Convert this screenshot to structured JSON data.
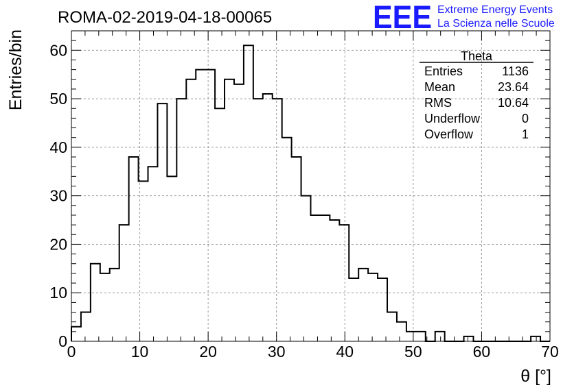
{
  "title": "ROMA-02-2019-04-18-00065",
  "logo": {
    "mark": "EEE",
    "line1": "Extreme Energy Events",
    "line2": "La Scienza nelle Scuole",
    "color": "#1a1aff"
  },
  "stats": {
    "name": "Theta",
    "rows": [
      {
        "label": "Entries",
        "value": "1136"
      },
      {
        "label": "Mean",
        "value": "23.64"
      },
      {
        "label": "RMS",
        "value": "10.64"
      },
      {
        "label": "Underflow",
        "value": "0"
      },
      {
        "label": "Overflow",
        "value": "1"
      }
    ]
  },
  "chart_data": {
    "type": "bar",
    "title": "ROMA-02-2019-04-18-00065",
    "xlabel": "θ [°]",
    "ylabel": "Entries/bin",
    "xlim": [
      0,
      70
    ],
    "ylim": [
      0,
      64
    ],
    "grid": true,
    "bin_width": 1.4,
    "xticks": [
      0,
      10,
      20,
      30,
      40,
      50,
      60,
      70
    ],
    "yticks": [
      0,
      10,
      20,
      30,
      40,
      50,
      60
    ],
    "values": [
      3,
      6,
      16,
      14,
      15,
      24,
      38,
      33,
      36,
      49,
      34,
      50,
      54,
      56,
      56,
      48,
      54,
      53,
      61,
      50,
      51,
      50,
      42,
      38,
      30,
      26,
      26,
      25,
      24,
      13,
      15,
      14,
      13,
      6,
      4,
      2,
      2,
      0,
      2,
      0,
      0,
      1,
      0,
      0,
      0,
      0,
      0,
      0,
      1,
      0
    ]
  }
}
